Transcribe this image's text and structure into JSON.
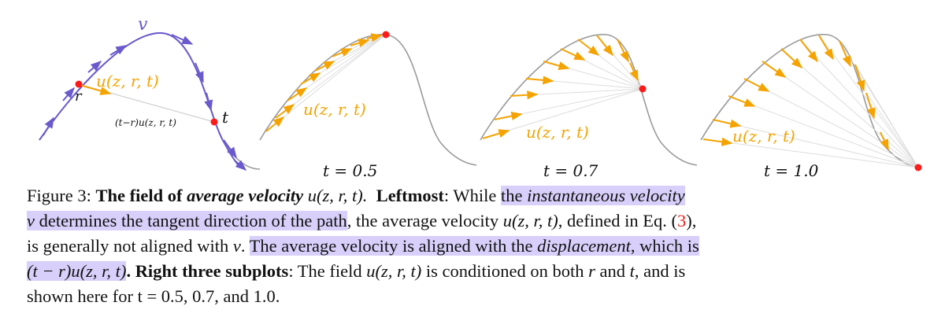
{
  "figure": {
    "leftmost": {
      "label_v": "v",
      "label_u": "u(z, r, t)",
      "label_r": "r",
      "label_t": "t",
      "label_disp": "(t−r)u(z, r, t)"
    },
    "subplots": [
      {
        "field_label": "u(z, r, t)",
        "t_label": "t = 0.5"
      },
      {
        "field_label": "u(z, r, t)",
        "t_label": "t = 0.7"
      },
      {
        "field_label": "u(z, r, t)",
        "t_label": "t = 1.0"
      }
    ],
    "colors": {
      "path": "#9a9a9a",
      "velocity": "#6a5acd",
      "field": "#f5a300",
      "point": "#ff1a1a",
      "highlight": "#d8d0fa"
    }
  },
  "caption": {
    "fig_label": "Figure 3: ",
    "title_a": "The field of ",
    "title_b": "average velocity",
    "title_math": " u(z, r, t).",
    "leftmost": "Leftmost",
    "l1_a": ": While ",
    "l1_hl_a": "the ",
    "l1_hl_b": "instantaneous velocity",
    "l2_hl_a": "v",
    "l2_hl_b": " determines the tangent direction of the path",
    "l2_c": ", the average velocity ",
    "l2_math": "u(z, r, t)",
    "l2_d": ", defined in Eq. (",
    "l2_ref": "3",
    "l2_e": "),",
    "l3_a": "is generally not aligned with ",
    "l3_math": "v",
    "l3_b": ". ",
    "l3_hl_a": "The average velocity is aligned with the ",
    "l3_hl_b": "displacement",
    "l3_hl_c": ", which is",
    "l4_hl": "(t − r)u(z, r, t)",
    "l4_a": ". ",
    "l4_bold": "Right three subplots",
    "l4_b": ": The field ",
    "l4_math": "u(z, r, t)",
    "l4_c": " is conditioned on both ",
    "l4_r": "r",
    "l4_d": " and ",
    "l4_t": "t",
    "l4_e": ", and is",
    "l5": "shown here for t = 0.5, 0.7, and 1.0."
  }
}
